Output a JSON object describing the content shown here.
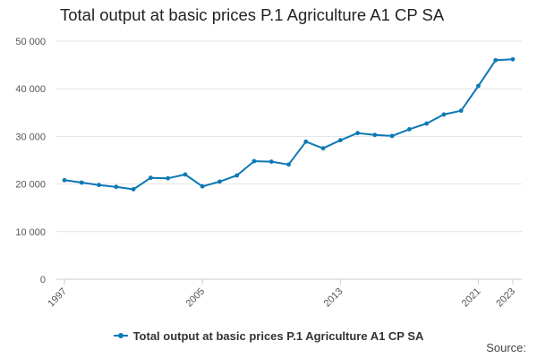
{
  "chart_data": {
    "type": "line",
    "title": "Total output at basic prices P.1 Agriculture A1 CP SA",
    "xlabel": "",
    "ylabel": "",
    "x": [
      1997,
      1998,
      1999,
      2000,
      2001,
      2002,
      2003,
      2004,
      2005,
      2006,
      2007,
      2008,
      2009,
      2010,
      2011,
      2012,
      2013,
      2014,
      2015,
      2016,
      2017,
      2018,
      2019,
      2020,
      2021,
      2022,
      2023
    ],
    "xticks": [
      1997,
      2005,
      2013,
      2021,
      2023
    ],
    "ylim": [
      0,
      50000
    ],
    "yticks": [
      0,
      10000,
      20000,
      30000,
      40000,
      50000
    ],
    "ytick_labels": [
      "0",
      "10 000",
      "20 000",
      "30 000",
      "40 000",
      "50 000"
    ],
    "series": [
      {
        "name": "Total output at basic prices P.1 Agriculture A1 CP SA",
        "color": "#0c78b5",
        "values": [
          20800,
          20300,
          19800,
          19400,
          18900,
          21300,
          21200,
          22000,
          19500,
          20500,
          21800,
          24800,
          24700,
          24100,
          28900,
          27500,
          29200,
          30700,
          30300,
          30100,
          31500,
          32700,
          34600,
          35400,
          40600,
          46000,
          46200
        ]
      }
    ],
    "grid": true,
    "legend_position": "bottom-center",
    "source_label": "Source:"
  }
}
